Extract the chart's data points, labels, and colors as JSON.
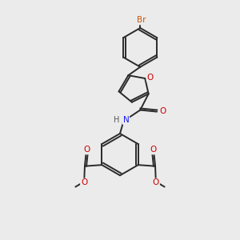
{
  "background_color": "#ebebeb",
  "bond_color": "#2a2a2a",
  "bond_width": 1.4,
  "text_colors": {
    "Br": "#cc5500",
    "O": "#cc0000",
    "N": "#1a1aee",
    "H": "#555555"
  },
  "figsize": [
    3.0,
    3.0
  ],
  "dpi": 100
}
